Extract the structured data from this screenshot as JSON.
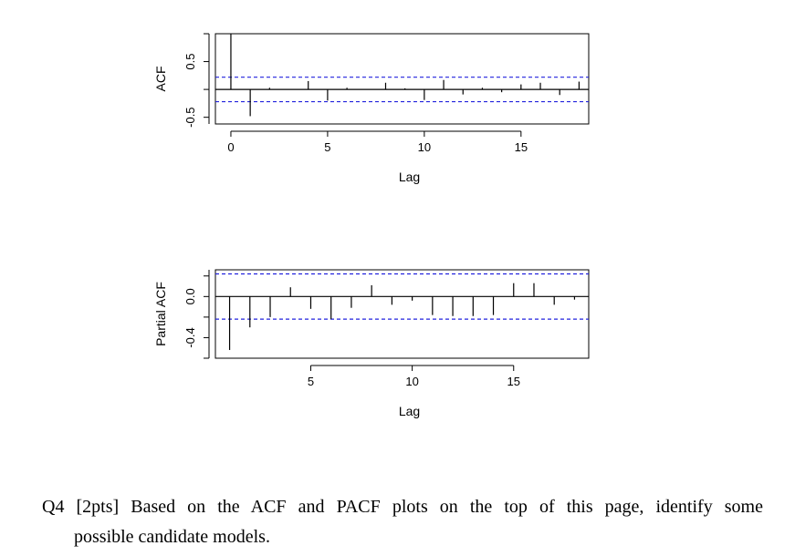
{
  "chart_data": [
    {
      "type": "bar",
      "xlabel": "Lag",
      "ylabel": "ACF",
      "xlim": [
        -0.8,
        18.5
      ],
      "ylim": [
        -0.62,
        1.0
      ],
      "xticks": [
        0,
        5,
        10,
        15
      ],
      "yticks": [
        -0.5,
        0.5
      ],
      "ytick_labels": [
        "-0.5",
        "0.5"
      ],
      "conf_band": 0.22,
      "x": [
        0,
        1,
        2,
        3,
        4,
        5,
        6,
        7,
        8,
        9,
        10,
        11,
        12,
        13,
        14,
        15,
        16,
        17,
        18
      ],
      "values": [
        1.0,
        -0.48,
        0.03,
        0.01,
        0.15,
        -0.2,
        0.03,
        0.01,
        0.12,
        0.02,
        -0.19,
        0.17,
        -0.09,
        0.03,
        -0.05,
        0.09,
        0.12,
        -0.1,
        0.14
      ]
    },
    {
      "type": "bar",
      "xlabel": "Lag",
      "ylabel": "Partial ACF",
      "xlim": [
        0.3,
        18.7
      ],
      "ylim": [
        -0.6,
        0.26
      ],
      "xticks": [
        5,
        10,
        15
      ],
      "yticks": [
        -0.4,
        0.0
      ],
      "ytick_labels": [
        "-0.4",
        "0.0"
      ],
      "conf_band": 0.22,
      "x": [
        1,
        2,
        3,
        4,
        5,
        6,
        7,
        8,
        9,
        10,
        11,
        12,
        13,
        14,
        15,
        16,
        17,
        18
      ],
      "values": [
        -0.52,
        -0.3,
        -0.2,
        0.09,
        -0.12,
        -0.22,
        -0.11,
        0.11,
        -0.08,
        -0.04,
        -0.18,
        -0.19,
        -0.19,
        -0.18,
        0.13,
        0.13,
        -0.08,
        -0.03
      ]
    }
  ],
  "question": {
    "line1": "Q4 [2pts] Based on the ACF and PACF plots on the top of this page, identify some",
    "line2": "possible candidate models."
  }
}
